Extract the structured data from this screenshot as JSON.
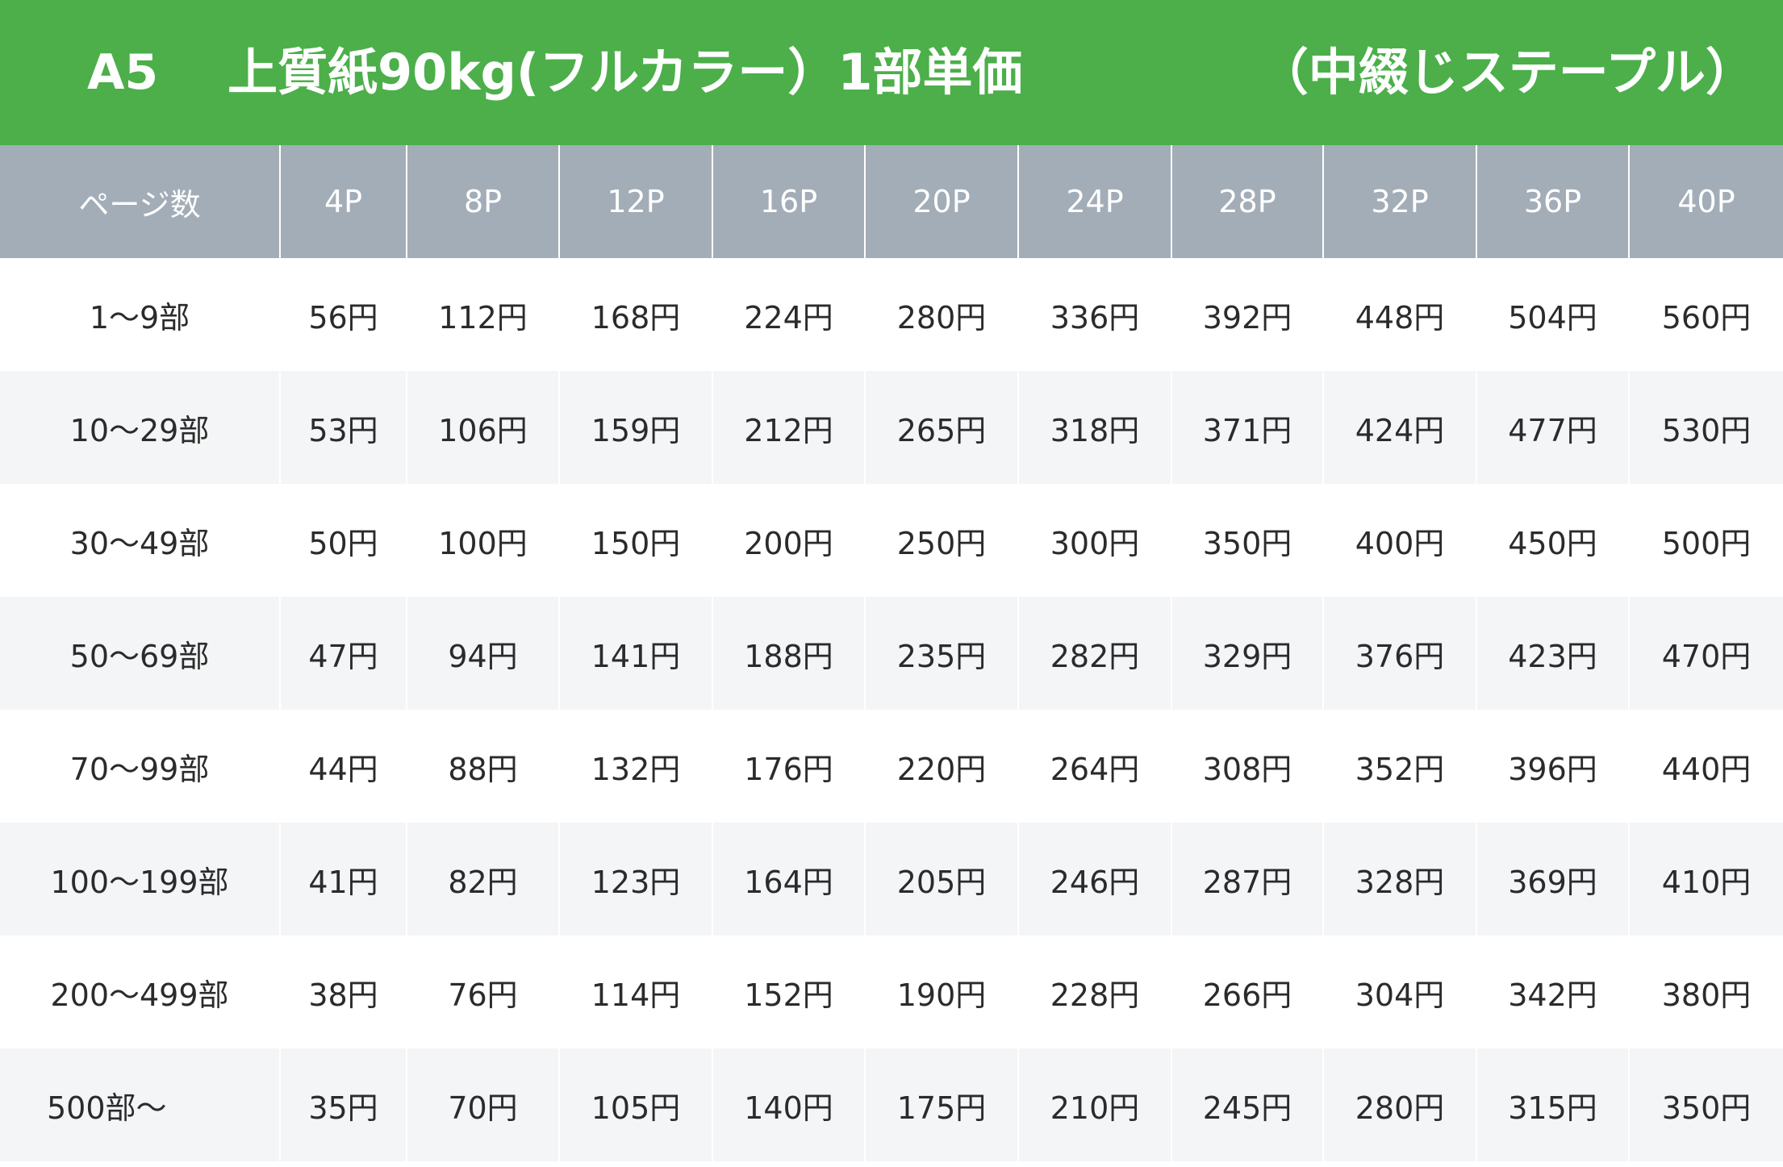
{
  "header": {
    "size": "A5",
    "title": "上質紙90kg(フルカラー）1部単価",
    "binding": "（中綴じステープル）"
  },
  "table": {
    "corner_label": "ページ数",
    "columns": [
      "4P",
      "8P",
      "12P",
      "16P",
      "20P",
      "24P",
      "28P",
      "32P",
      "36P",
      "40P"
    ],
    "rows": [
      {
        "label": "1〜9部",
        "cells": [
          "56円",
          "112円",
          "168円",
          "224円",
          "280円",
          "336円",
          "392円",
          "448円",
          "504円",
          "560円"
        ]
      },
      {
        "label": "10〜29部",
        "cells": [
          "53円",
          "106円",
          "159円",
          "212円",
          "265円",
          "318円",
          "371円",
          "424円",
          "477円",
          "530円"
        ]
      },
      {
        "label": "30〜49部",
        "cells": [
          "50円",
          "100円",
          "150円",
          "200円",
          "250円",
          "300円",
          "350円",
          "400円",
          "450円",
          "500円"
        ]
      },
      {
        "label": "50〜69部",
        "cells": [
          "47円",
          "94円",
          "141円",
          "188円",
          "235円",
          "282円",
          "329円",
          "376円",
          "423円",
          "470円"
        ]
      },
      {
        "label": "70〜99部",
        "cells": [
          "44円",
          "88円",
          "132円",
          "176円",
          "220円",
          "264円",
          "308円",
          "352円",
          "396円",
          "440円"
        ]
      },
      {
        "label": "100〜199部",
        "cells": [
          "41円",
          "82円",
          "123円",
          "164円",
          "205円",
          "246円",
          "287円",
          "328円",
          "369円",
          "410円"
        ]
      },
      {
        "label": "200〜499部",
        "cells": [
          "38円",
          "76円",
          "114円",
          "152円",
          "190円",
          "228円",
          "266円",
          "304円",
          "342円",
          "380円"
        ]
      },
      {
        "label": "500部〜",
        "cells": [
          "35円",
          "70円",
          "105円",
          "140円",
          "175円",
          "210円",
          "245円",
          "280円",
          "315円",
          "350円"
        ]
      }
    ]
  },
  "colors": {
    "banner": "#4caf4a",
    "header_row": "#a3adb7",
    "row_alt": "#f4f5f7"
  }
}
